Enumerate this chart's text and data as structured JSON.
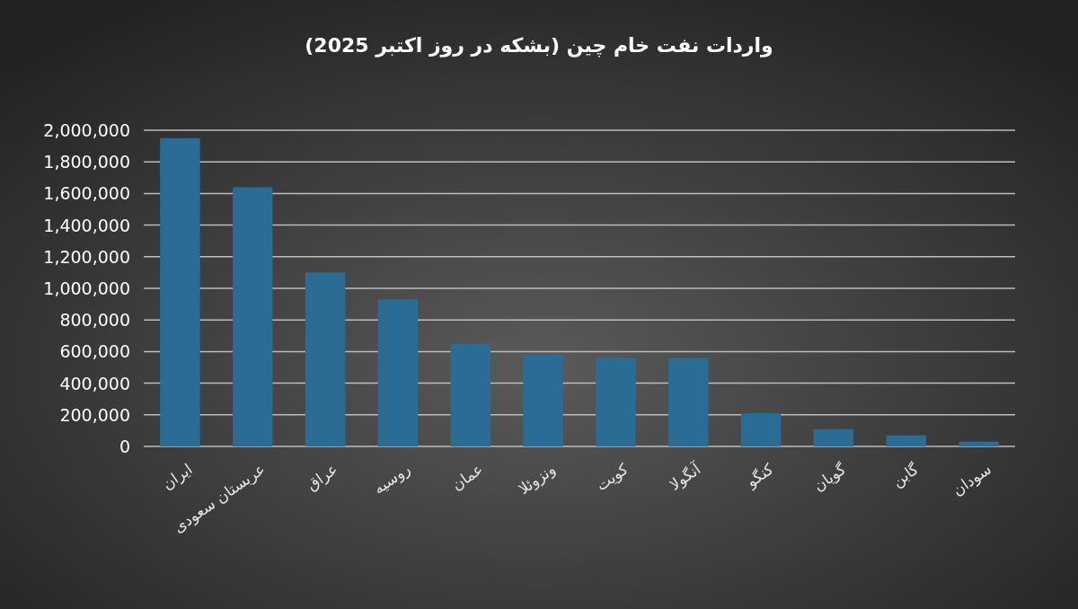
{
  "chart_data": {
    "type": "bar",
    "title": "واردات نفت خام چین (بشکه در روز اکتبر 2025)",
    "categories": [
      "ایران",
      "عربستان سعودی",
      "عراق",
      "روسیه",
      "عمان",
      "ونزوئلا",
      "کویت",
      "آنگولا",
      "کنگو",
      "گویان",
      "گابن",
      "سودان"
    ],
    "values": [
      1950000,
      1640000,
      1100000,
      930000,
      650000,
      580000,
      560000,
      560000,
      210000,
      110000,
      70000,
      30000
    ],
    "color": "#2b6c94",
    "ylim": [
      0,
      2000000
    ],
    "yticks": [
      0,
      {
        "value": 200000,
        "label": "200,000"
      },
      {
        "value": 400000,
        "label": "400,000"
      },
      {
        "value": 600000,
        "label": "600,000"
      },
      {
        "value": 800000,
        "label": "800,000"
      },
      {
        "value": 1000000,
        "label": "1,000,000"
      },
      {
        "value": 1200000,
        "label": "1,200,000"
      },
      {
        "value": 1400000,
        "label": "1,400,000"
      },
      {
        "value": 1600000,
        "label": "1,600,000"
      },
      {
        "value": 1800000,
        "label": "1,800,000"
      },
      {
        "value": 2000000,
        "label": "2,000,000"
      }
    ],
    "grid": "y"
  }
}
